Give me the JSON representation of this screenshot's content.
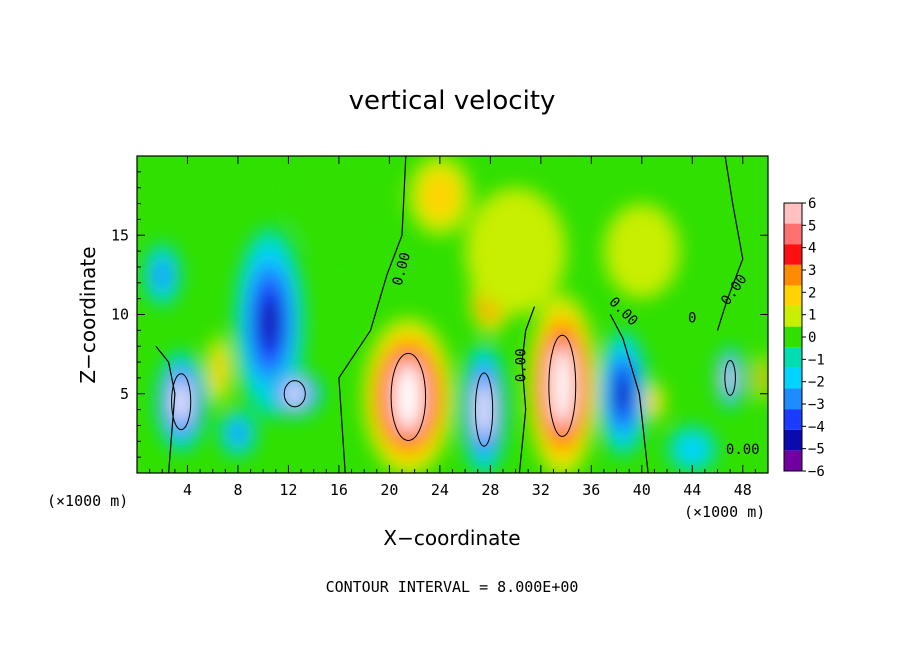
{
  "chart_data": {
    "type": "heatmap",
    "title": "vertical velocity",
    "xlabel": "X−coordinate",
    "ylabel": "Z−coordinate",
    "x_unit": "(×1000 m)",
    "xlim": [
      0,
      50
    ],
    "ylim": [
      0,
      20
    ],
    "x_ticks": [
      "4",
      "8",
      "12",
      "16",
      "20",
      "24",
      "28",
      "32",
      "36",
      "40",
      "44",
      "48"
    ],
    "y_ticks": [
      "5",
      "10",
      "15"
    ],
    "colorbar": {
      "labels": [
        "6",
        "5",
        "4",
        "3",
        "2",
        "1",
        "0",
        "−1",
        "−2",
        "−3",
        "−4",
        "−5",
        "−6"
      ],
      "colors": [
        "#ffc0c0",
        "#ff7070",
        "#ff1010",
        "#ff8c00",
        "#ffd400",
        "#c8ee00",
        "#30e000",
        "#00ddb0",
        "#00d4ff",
        "#1e8cff",
        "#1a3cff",
        "#0a0ab0",
        "#7000a0"
      ]
    },
    "contour_labels": [
      "0.00",
      "0.00",
      "0.00",
      "0.00",
      "0.00",
      "0"
    ],
    "cells": [
      {
        "x": 3.5,
        "z": 4.5,
        "rx": 2.0,
        "rz": 3.2,
        "w": -5.5
      },
      {
        "x": 6.5,
        "z": 6.5,
        "rx": 1.0,
        "rz": 2.2,
        "w": 1.8
      },
      {
        "x": 2.0,
        "z": 12.5,
        "rx": 1.5,
        "rz": 2.0,
        "w": -2.5
      },
      {
        "x": 10.5,
        "z": 9.5,
        "rx": 2.8,
        "rz": 6.0,
        "w": -4.8
      },
      {
        "x": 12.5,
        "z": 5.0,
        "rx": 2.2,
        "rz": 1.5,
        "w": -5.8
      },
      {
        "x": 8.0,
        "z": 2.5,
        "rx": 1.5,
        "rz": 1.5,
        "w": -3.0
      },
      {
        "x": 21.5,
        "z": 4.8,
        "rx": 3.6,
        "rz": 5.0,
        "w": 5.5
      },
      {
        "x": 28.0,
        "z": 11.0,
        "rx": 1.6,
        "rz": 2.2,
        "w": 4.0
      },
      {
        "x": 27.5,
        "z": 4.0,
        "rx": 1.8,
        "rz": 4.2,
        "w": -5.8
      },
      {
        "x": 33.7,
        "z": 5.5,
        "rx": 2.8,
        "rz": 5.8,
        "w": 6.0
      },
      {
        "x": 38.5,
        "z": 5.0,
        "rx": 2.0,
        "rz": 4.0,
        "w": -4.5
      },
      {
        "x": 41.0,
        "z": 4.5,
        "rx": 0.8,
        "rz": 1.2,
        "w": 2.5
      },
      {
        "x": 47.0,
        "z": 6.0,
        "rx": 1.1,
        "rz": 2.0,
        "w": -5.5
      },
      {
        "x": 49.5,
        "z": 6.0,
        "rx": 0.6,
        "rz": 1.5,
        "w": 3.0
      },
      {
        "x": 30.0,
        "z": 14.0,
        "rx": 4.0,
        "rz": 4.0,
        "w": 1.2
      },
      {
        "x": 40.0,
        "z": 14.0,
        "rx": 3.0,
        "rz": 3.0,
        "w": 0.6
      },
      {
        "x": 44.0,
        "z": 1.5,
        "rx": 2.0,
        "rz": 1.5,
        "w": -2.0
      },
      {
        "x": 16.0,
        "z": 17.0,
        "rx": 4.0,
        "rz": 3.0,
        "w": -0.3
      },
      {
        "x": 24.0,
        "z": 17.5,
        "rx": 2.5,
        "rz": 2.5,
        "w": 1.8
      }
    ]
  },
  "footer": "CONTOUR INTERVAL = 8.000E+00"
}
